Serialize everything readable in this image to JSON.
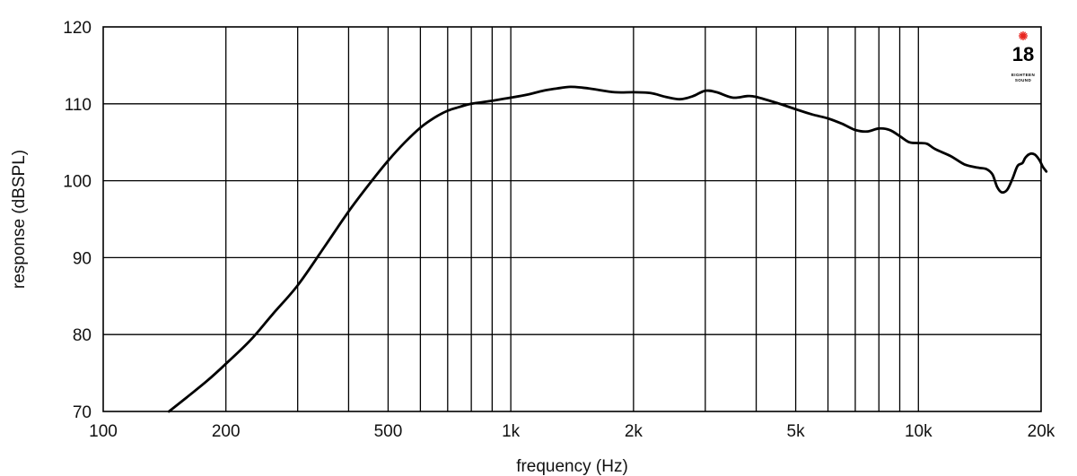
{
  "chart_data": {
    "type": "line",
    "title": "",
    "xlabel": "frequency (Hz)",
    "ylabel": "response (dBSPL)",
    "x_scale": "log",
    "xlim": [
      100,
      20000
    ],
    "ylim": [
      70,
      120
    ],
    "grid": true,
    "x_ticks": [
      {
        "value": 100,
        "label": "100"
      },
      {
        "value": 200,
        "label": "200"
      },
      {
        "value": 500,
        "label": "500"
      },
      {
        "value": 1000,
        "label": "1k"
      },
      {
        "value": 2000,
        "label": "2k"
      },
      {
        "value": 5000,
        "label": "5k"
      },
      {
        "value": 10000,
        "label": "10k"
      },
      {
        "value": 20000,
        "label": "20k"
      }
    ],
    "x_gridlines": [
      200,
      300,
      400,
      500,
      600,
      700,
      800,
      900,
      1000,
      2000,
      3000,
      4000,
      5000,
      6000,
      7000,
      8000,
      9000,
      10000
    ],
    "y_ticks": [
      {
        "value": 70,
        "label": "70"
      },
      {
        "value": 80,
        "label": "80"
      },
      {
        "value": 90,
        "label": "90"
      },
      {
        "value": 100,
        "label": "100"
      },
      {
        "value": 110,
        "label": "110"
      },
      {
        "value": 120,
        "label": "120"
      }
    ],
    "series": [
      {
        "color": "#000000",
        "points": [
          [
            145,
            70.0
          ],
          [
            160,
            71.8
          ],
          [
            180,
            74.0
          ],
          [
            200,
            76.2
          ],
          [
            230,
            79.3
          ],
          [
            260,
            82.6
          ],
          [
            300,
            86.4
          ],
          [
            350,
            91.5
          ],
          [
            400,
            96.0
          ],
          [
            450,
            99.6
          ],
          [
            500,
            102.6
          ],
          [
            550,
            105.0
          ],
          [
            600,
            106.9
          ],
          [
            650,
            108.2
          ],
          [
            700,
            109.1
          ],
          [
            750,
            109.6
          ],
          [
            800,
            110.0
          ],
          [
            900,
            110.4
          ],
          [
            1000,
            110.8
          ],
          [
            1100,
            111.2
          ],
          [
            1200,
            111.7
          ],
          [
            1300,
            112.0
          ],
          [
            1400,
            112.2
          ],
          [
            1500,
            112.1
          ],
          [
            1600,
            111.9
          ],
          [
            1800,
            111.5
          ],
          [
            2000,
            111.5
          ],
          [
            2200,
            111.4
          ],
          [
            2400,
            110.9
          ],
          [
            2600,
            110.6
          ],
          [
            2800,
            111.0
          ],
          [
            3000,
            111.7
          ],
          [
            3200,
            111.5
          ],
          [
            3500,
            110.8
          ],
          [
            3800,
            111.0
          ],
          [
            4000,
            110.9
          ],
          [
            4500,
            110.1
          ],
          [
            5000,
            109.3
          ],
          [
            5500,
            108.6
          ],
          [
            6000,
            108.1
          ],
          [
            6500,
            107.4
          ],
          [
            7000,
            106.6
          ],
          [
            7500,
            106.4
          ],
          [
            8000,
            106.8
          ],
          [
            8500,
            106.6
          ],
          [
            9000,
            105.8
          ],
          [
            9500,
            105.0
          ],
          [
            10000,
            104.9
          ],
          [
            10500,
            104.8
          ],
          [
            11000,
            104.1
          ],
          [
            12000,
            103.2
          ],
          [
            13000,
            102.1
          ],
          [
            14000,
            101.7
          ],
          [
            14700,
            101.5
          ],
          [
            15200,
            100.8
          ],
          [
            15600,
            99.2
          ],
          [
            16000,
            98.5
          ],
          [
            16500,
            98.8
          ],
          [
            17000,
            100.2
          ],
          [
            17500,
            101.9
          ],
          [
            18000,
            102.3
          ],
          [
            18300,
            103.0
          ],
          [
            18800,
            103.5
          ],
          [
            19300,
            103.4
          ],
          [
            19800,
            102.7
          ],
          [
            20200,
            101.8
          ],
          [
            20600,
            101.2
          ]
        ]
      }
    ]
  },
  "logo": {
    "number": "18",
    "line1": "EIGHTEEN",
    "line2": "SOUND",
    "star_color": "#e8251f"
  }
}
